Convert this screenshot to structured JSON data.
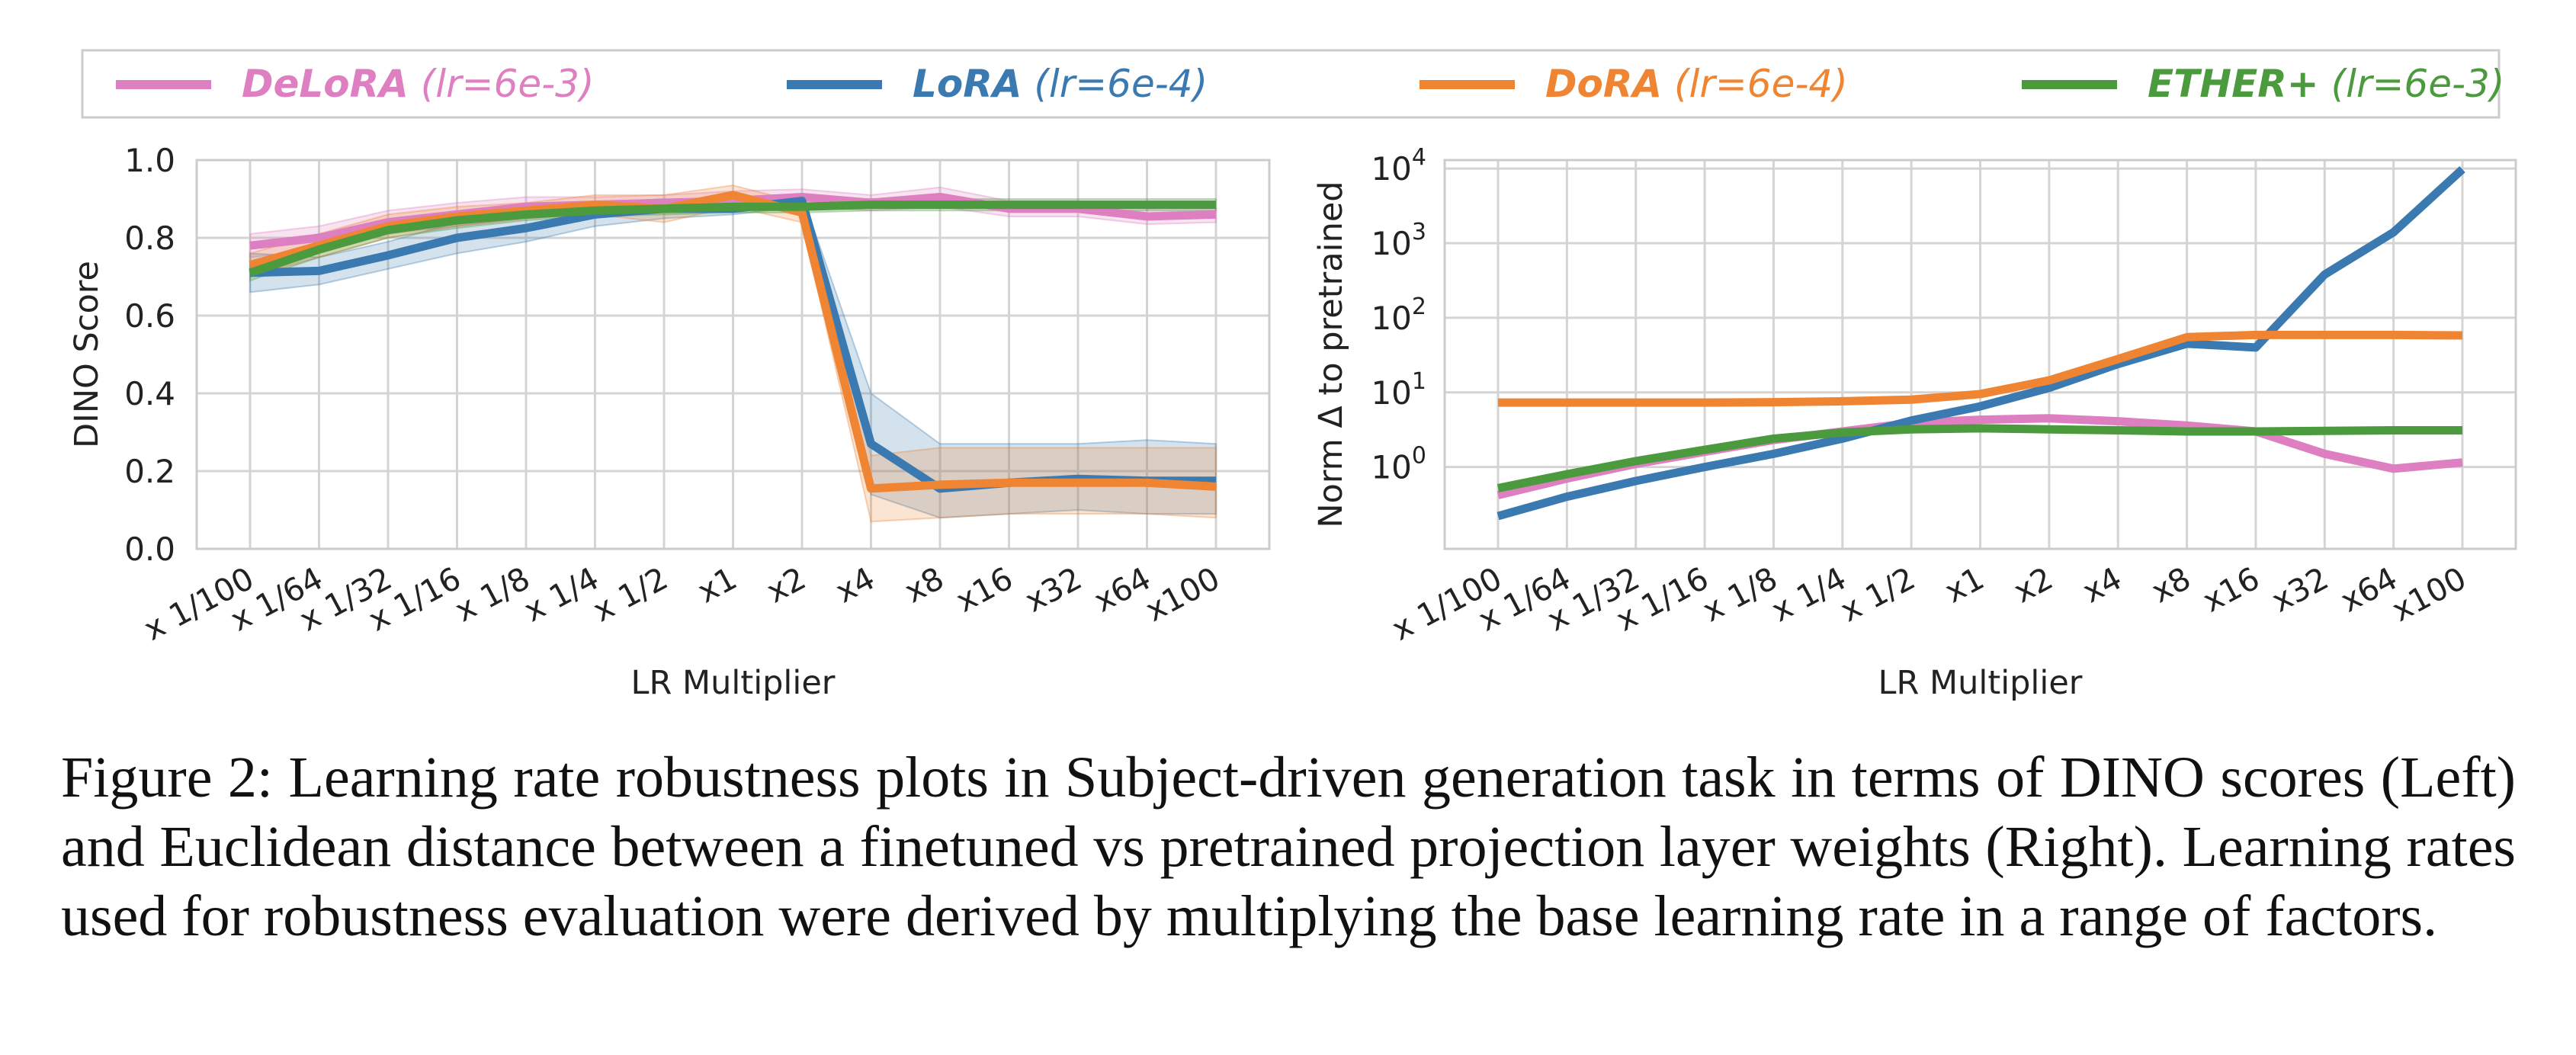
{
  "legend": [
    {
      "method": "DeLoRA",
      "lr": "(lr=6e-3)",
      "color": "#dd7fc0"
    },
    {
      "method": "LoRA",
      "lr": "(lr=6e-4)",
      "color": "#3a7ab0"
    },
    {
      "method": "DoRA",
      "lr": "(lr=6e-4)",
      "color": "#ef8533"
    },
    {
      "method": "ETHER+",
      "lr": "(lr=6e-3)",
      "color": "#4c9a3e"
    }
  ],
  "caption": "Figure 2: Learning rate robustness plots in Subject-driven generation task in terms of DINO scores (Left) and Euclidean distance between a finetuned vs pretrained projection layer weights (Right). Learning rates used for robustness evaluation were derived by multiplying the base learning rate in a range of factors.",
  "chart_data": [
    {
      "type": "line",
      "xlabel": "LR Multiplier",
      "ylabel": "DINO Score",
      "categories": [
        "x 1/100",
        "x 1/64",
        "x 1/32",
        "x 1/16",
        "x 1/8",
        "x 1/4",
        "x 1/2",
        "x1",
        "x2",
        "x4",
        "x8",
        "x16",
        "x32",
        "x64",
        "x100"
      ],
      "ylim": [
        0,
        1
      ],
      "yticks": [
        "0.0",
        "0.2",
        "0.4",
        "0.6",
        "0.8",
        "1.0"
      ],
      "grid": true,
      "series": [
        {
          "name": "DeLoRA",
          "color": "#dd7fc0",
          "values": [
            0.78,
            0.8,
            0.84,
            0.86,
            0.88,
            0.885,
            0.89,
            0.895,
            0.905,
            0.89,
            0.905,
            0.875,
            0.875,
            0.855,
            0.86
          ],
          "lower": [
            0.75,
            0.77,
            0.81,
            0.83,
            0.85,
            0.86,
            0.865,
            0.87,
            0.88,
            0.87,
            0.88,
            0.855,
            0.855,
            0.835,
            0.84
          ],
          "upper": [
            0.81,
            0.83,
            0.87,
            0.89,
            0.905,
            0.905,
            0.91,
            0.92,
            0.925,
            0.91,
            0.93,
            0.895,
            0.895,
            0.875,
            0.88
          ]
        },
        {
          "name": "LoRA",
          "color": "#3a7ab0",
          "values": [
            0.71,
            0.715,
            0.755,
            0.8,
            0.825,
            0.86,
            0.875,
            0.875,
            0.895,
            0.27,
            0.155,
            0.17,
            0.18,
            0.175,
            0.175
          ],
          "lower": [
            0.66,
            0.68,
            0.72,
            0.76,
            0.79,
            0.83,
            0.85,
            0.86,
            0.88,
            0.14,
            0.08,
            0.09,
            0.1,
            0.09,
            0.09
          ],
          "upper": [
            0.76,
            0.75,
            0.79,
            0.84,
            0.86,
            0.89,
            0.9,
            0.89,
            0.91,
            0.4,
            0.27,
            0.27,
            0.27,
            0.28,
            0.27
          ]
        },
        {
          "name": "DoRA",
          "color": "#ef8533",
          "values": [
            0.73,
            0.78,
            0.83,
            0.855,
            0.87,
            0.885,
            0.875,
            0.91,
            0.865,
            0.155,
            0.165,
            0.17,
            0.17,
            0.17,
            0.16
          ],
          "lower": [
            0.7,
            0.75,
            0.8,
            0.83,
            0.85,
            0.86,
            0.84,
            0.88,
            0.84,
            0.07,
            0.08,
            0.09,
            0.09,
            0.09,
            0.08
          ],
          "upper": [
            0.76,
            0.81,
            0.86,
            0.88,
            0.89,
            0.91,
            0.91,
            0.935,
            0.89,
            0.24,
            0.26,
            0.26,
            0.26,
            0.26,
            0.26
          ]
        },
        {
          "name": "ETHER+",
          "color": "#4c9a3e",
          "values": [
            0.71,
            0.77,
            0.82,
            0.845,
            0.86,
            0.87,
            0.875,
            0.88,
            0.88,
            0.885,
            0.885,
            0.885,
            0.885,
            0.885,
            0.885
          ],
          "lower": [
            0.69,
            0.75,
            0.8,
            0.825,
            0.845,
            0.855,
            0.86,
            0.865,
            0.865,
            0.87,
            0.87,
            0.87,
            0.87,
            0.87,
            0.87
          ],
          "upper": [
            0.73,
            0.79,
            0.84,
            0.865,
            0.875,
            0.885,
            0.89,
            0.895,
            0.895,
            0.9,
            0.9,
            0.9,
            0.9,
            0.9,
            0.9
          ]
        }
      ]
    },
    {
      "type": "line",
      "xlabel": "LR Multiplier",
      "ylabel": "Norm Δ to pretrained",
      "yscale": "log",
      "categories": [
        "x 1/100",
        "x 1/64",
        "x 1/32",
        "x 1/16",
        "x 1/8",
        "x 1/4",
        "x 1/2",
        "x1",
        "x2",
        "x4",
        "x8",
        "x16",
        "x32",
        "x64",
        "x100"
      ],
      "ylim": [
        0.08,
        13000
      ],
      "yticks": [
        1,
        10,
        100,
        1000,
        10000
      ],
      "grid": true,
      "series": [
        {
          "name": "DeLoRA",
          "color": "#dd7fc0",
          "values": [
            0.42,
            0.7,
            1.1,
            1.6,
            2.3,
            3.0,
            3.9,
            4.3,
            4.5,
            4.1,
            3.6,
            3.0,
            1.5,
            0.95,
            1.15
          ]
        },
        {
          "name": "LoRA",
          "color": "#3a7ab0",
          "values": [
            0.22,
            0.4,
            0.65,
            1.0,
            1.5,
            2.4,
            4.2,
            6.5,
            11.5,
            24,
            45,
            40,
            380,
            1400,
            9800
          ]
        },
        {
          "name": "DoRA",
          "color": "#ef8533",
          "values": [
            7.3,
            7.3,
            7.3,
            7.3,
            7.4,
            7.6,
            8.0,
            9.5,
            14.5,
            28,
            55,
            59,
            59,
            59,
            58
          ]
        },
        {
          "name": "ETHER+",
          "color": "#4c9a3e",
          "values": [
            0.52,
            0.8,
            1.2,
            1.7,
            2.4,
            2.9,
            3.2,
            3.3,
            3.2,
            3.1,
            3.0,
            3.0,
            3.05,
            3.1,
            3.1
          ]
        }
      ]
    }
  ]
}
